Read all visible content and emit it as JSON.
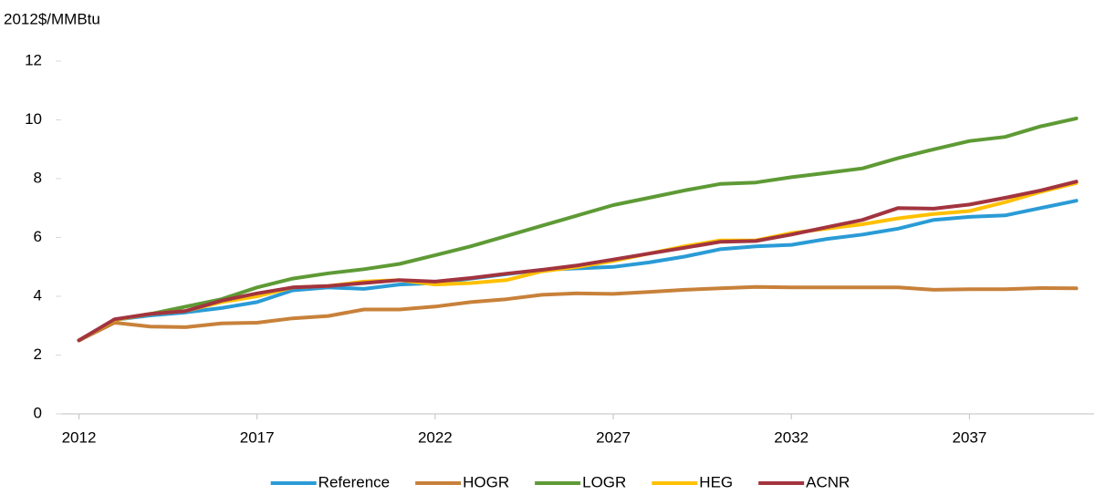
{
  "chart_data": {
    "type": "line",
    "y_label": "2012$/MMBtu",
    "x": [
      2012,
      2013,
      2014,
      2015,
      2016,
      2017,
      2018,
      2019,
      2020,
      2021,
      2022,
      2023,
      2024,
      2025,
      2026,
      2027,
      2028,
      2029,
      2030,
      2031,
      2032,
      2033,
      2034,
      2035,
      2036,
      2037,
      2038,
      2039,
      2040
    ],
    "xlim": [
      2011.5,
      2040.5
    ],
    "xticks": [
      2012,
      2017,
      2022,
      2027,
      2032,
      2037
    ],
    "ylim": [
      0,
      12
    ],
    "yticks": [
      0,
      2,
      4,
      6,
      8,
      10,
      12
    ],
    "grid": false,
    "legend": "bottom",
    "series": [
      {
        "name": "Reference",
        "color": "#2a9bd6",
        "values": [
          2.5,
          3.2,
          3.35,
          3.45,
          3.6,
          3.8,
          4.2,
          4.3,
          4.25,
          4.4,
          4.45,
          4.6,
          4.75,
          4.9,
          4.95,
          5.0,
          5.15,
          5.35,
          5.6,
          5.7,
          5.75,
          5.95,
          6.1,
          6.3,
          6.6,
          6.7,
          6.75,
          7.0,
          7.25
        ]
      },
      {
        "name": "HOGR",
        "color": "#c8813a",
        "values": [
          2.5,
          3.1,
          2.97,
          2.95,
          3.08,
          3.1,
          3.25,
          3.33,
          3.55,
          3.55,
          3.65,
          3.8,
          3.9,
          4.05,
          4.1,
          4.08,
          4.15,
          4.22,
          4.27,
          4.32,
          4.3,
          4.3,
          4.3,
          4.3,
          4.22,
          4.24,
          4.24,
          4.28,
          4.27
        ]
      },
      {
        "name": "LOGR",
        "color": "#5e9a35",
        "values": [
          2.5,
          3.2,
          3.4,
          3.65,
          3.9,
          4.3,
          4.6,
          4.78,
          4.92,
          5.1,
          5.4,
          5.7,
          6.05,
          6.4,
          6.75,
          7.1,
          7.35,
          7.6,
          7.82,
          7.87,
          8.05,
          8.2,
          8.35,
          8.7,
          9.0,
          9.28,
          9.42,
          9.78,
          10.05
        ]
      },
      {
        "name": "HEG",
        "color": "#ffc000",
        "values": [
          2.5,
          3.2,
          3.4,
          3.5,
          3.8,
          4.0,
          4.3,
          4.35,
          4.5,
          4.55,
          4.4,
          4.45,
          4.55,
          4.85,
          5.0,
          5.2,
          5.45,
          5.7,
          5.9,
          5.9,
          6.15,
          6.3,
          6.45,
          6.65,
          6.8,
          6.9,
          7.2,
          7.55,
          7.85
        ]
      },
      {
        "name": "ACNR",
        "color": "#a2343f",
        "values": [
          2.5,
          3.22,
          3.4,
          3.5,
          3.85,
          4.1,
          4.3,
          4.35,
          4.45,
          4.55,
          4.5,
          4.62,
          4.77,
          4.9,
          5.05,
          5.25,
          5.45,
          5.65,
          5.85,
          5.88,
          6.1,
          6.35,
          6.6,
          7.0,
          6.98,
          7.12,
          7.35,
          7.6,
          7.9
        ]
      }
    ]
  }
}
